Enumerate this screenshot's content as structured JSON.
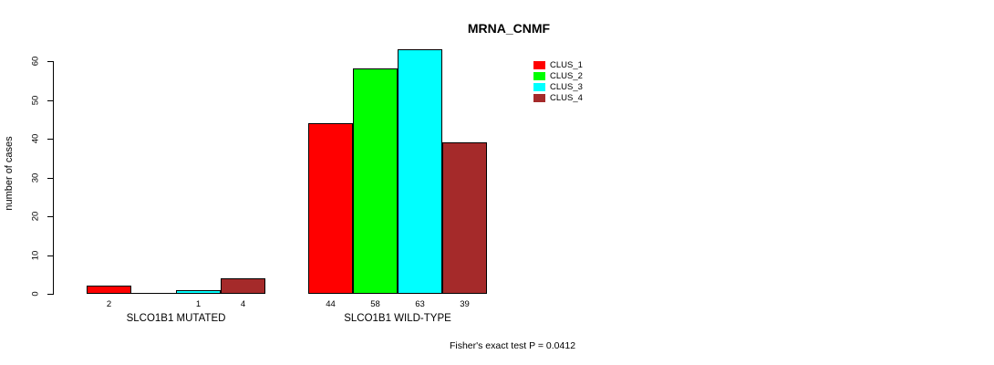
{
  "chart_data": {
    "type": "bar",
    "title": "MRNA_CNMF",
    "ylabel": "number of cases",
    "ylim": [
      0,
      60
    ],
    "yticks": [
      0,
      10,
      20,
      30,
      40,
      50,
      60
    ],
    "categories": [
      "SLCO1B1 MUTATED",
      "SLCO1B1 WILD-TYPE"
    ],
    "series": [
      {
        "name": "CLUS_1",
        "color": "#ff0000",
        "values": [
          2,
          44
        ]
      },
      {
        "name": "CLUS_2",
        "color": "#00ff00",
        "values": [
          0,
          58
        ]
      },
      {
        "name": "CLUS_3",
        "color": "#00ffff",
        "values": [
          1,
          63
        ]
      },
      {
        "name": "CLUS_4",
        "color": "#a52a2a",
        "values": [
          4,
          39
        ]
      }
    ],
    "bar_value_labels": {
      "mutated": [
        "2",
        "",
        "1",
        "4"
      ],
      "wild_type": [
        "44",
        "58",
        "63",
        "39"
      ]
    },
    "legend_position": "inset top-right",
    "grid": false,
    "annotation": "Fisher's exact test P = 0.0412"
  }
}
